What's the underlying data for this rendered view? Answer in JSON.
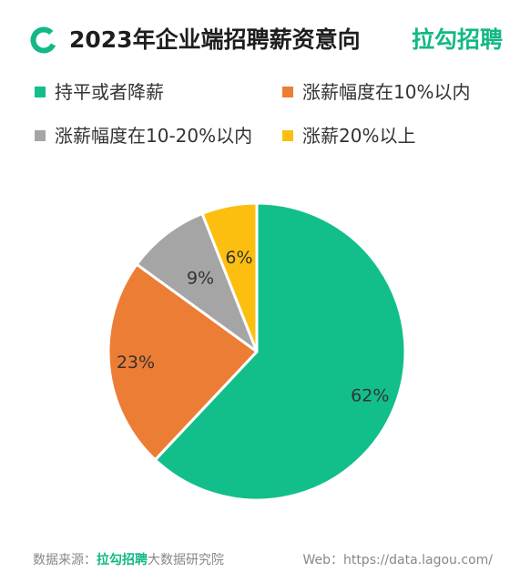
{
  "header": {
    "title": "2023年企业端招聘薪资意向",
    "brand": "拉勾招聘"
  },
  "colors": {
    "brand": "#12b886",
    "series": [
      "#12bf8a",
      "#ec7d35",
      "#a5a5a5",
      "#fdbf0f"
    ]
  },
  "chart_data": {
    "type": "pie",
    "title": "2023年企业端招聘薪资意向",
    "legend_position": "top",
    "categories": [
      "持平或者降薪",
      "涨薪幅度在10%以内",
      "涨薪幅度在10-20%以内",
      "涨薪20%以上"
    ],
    "values": [
      62,
      23,
      9,
      6
    ],
    "labels": [
      "62%",
      "23%",
      "9%",
      "6%"
    ],
    "start_angle_deg": 0,
    "direction": "clockwise"
  },
  "footer": {
    "source_label": "数据来源：",
    "source_brand": "拉勾招聘",
    "source_suffix": "大数据研究院",
    "web": "Web：https://data.lagou.com/"
  }
}
